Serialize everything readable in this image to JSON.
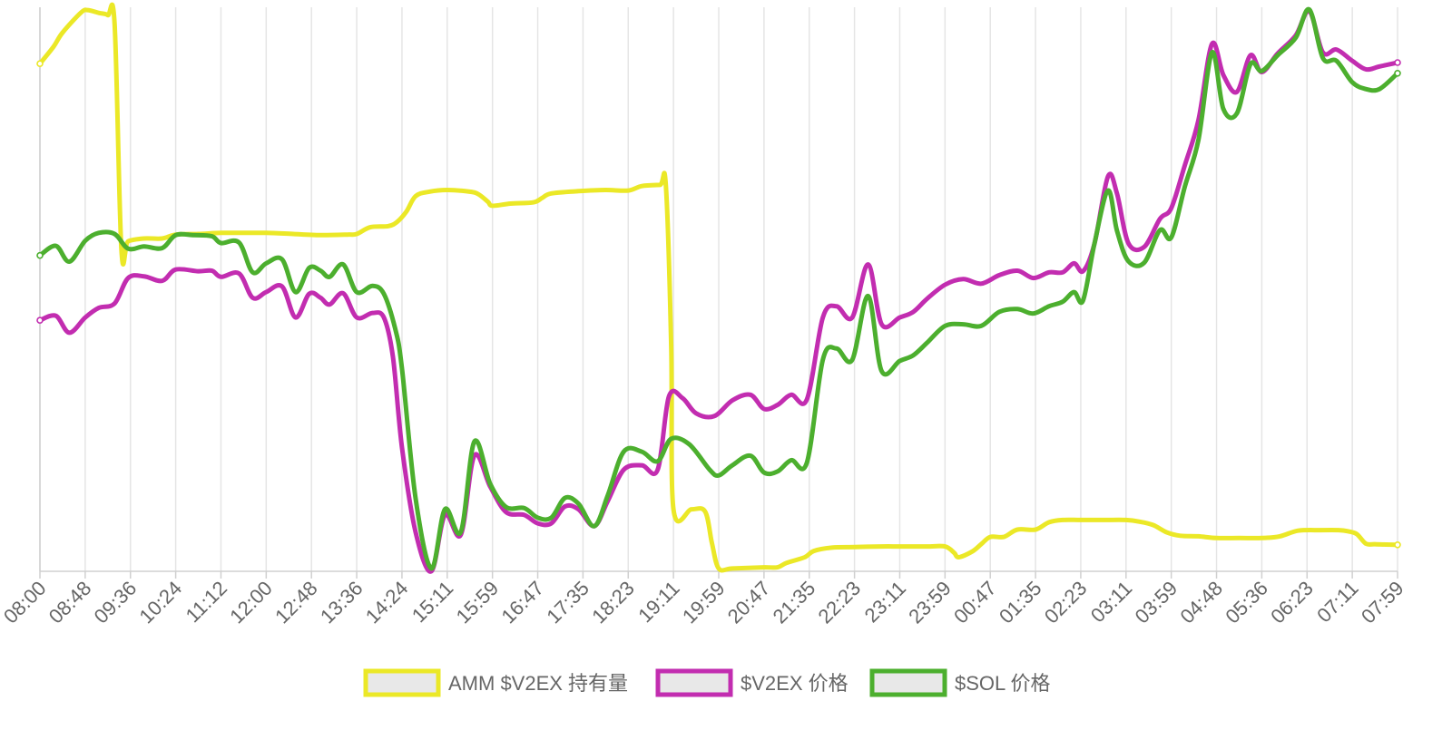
{
  "chart_data": {
    "type": "line",
    "title": "",
    "xlabel": "",
    "ylabel": "",
    "grid": "vertical",
    "legend_position": "bottom",
    "x_ticks": [
      "08:00",
      "08:48",
      "09:36",
      "10:24",
      "11:12",
      "12:00",
      "12:48",
      "13:36",
      "14:24",
      "15:11",
      "15:59",
      "16:47",
      "17:35",
      "18:23",
      "19:11",
      "19:59",
      "20:47",
      "21:35",
      "22:23",
      "23:11",
      "23:59",
      "00:47",
      "01:35",
      "02:23",
      "03:11",
      "03:59",
      "04:48",
      "05:36",
      "06:23",
      "07:11",
      "07:59"
    ],
    "x_range": [
      0,
      30
    ],
    "y_range": [
      0,
      100
    ],
    "series": [
      {
        "name": "AMM $V2EX 持有量",
        "color": "#ebe827",
        "points": [
          [
            0,
            90
          ],
          [
            0.3,
            93
          ],
          [
            0.5,
            95.5
          ],
          [
            0.9,
            99
          ],
          [
            1.05,
            99.5
          ],
          [
            1.3,
            99
          ],
          [
            1.5,
            98.6
          ],
          [
            1.65,
            97
          ],
          [
            1.8,
            57
          ],
          [
            1.95,
            58.5
          ],
          [
            2.3,
            59
          ],
          [
            2.7,
            59
          ],
          [
            3.0,
            59.7
          ],
          [
            3.5,
            59.8
          ],
          [
            4.0,
            60
          ],
          [
            4.5,
            60
          ],
          [
            5.0,
            60
          ],
          [
            5.6,
            59.8
          ],
          [
            6.2,
            59.6
          ],
          [
            6.8,
            59.7
          ],
          [
            7.0,
            59.8
          ],
          [
            7.3,
            61
          ],
          [
            7.7,
            61.2
          ],
          [
            7.9,
            62
          ],
          [
            8.1,
            63.8
          ],
          [
            8.3,
            66.5
          ],
          [
            8.6,
            67.3
          ],
          [
            9.0,
            67.6
          ],
          [
            9.5,
            67.3
          ],
          [
            9.7,
            66.8
          ],
          [
            9.9,
            65.5
          ],
          [
            10.0,
            64.8
          ],
          [
            10.4,
            65.2
          ],
          [
            10.9,
            65.4
          ],
          [
            11.1,
            66.2
          ],
          [
            11.3,
            67
          ],
          [
            11.9,
            67.4
          ],
          [
            12.5,
            67.6
          ],
          [
            13.0,
            67.5
          ],
          [
            13.3,
            68.3
          ],
          [
            13.7,
            68.5
          ],
          [
            13.83,
            68.5
          ],
          [
            13.95,
            40
          ],
          [
            14.0,
            11
          ],
          [
            14.4,
            11
          ],
          [
            14.7,
            10.6
          ],
          [
            14.85,
            5
          ],
          [
            15.0,
            0.5
          ],
          [
            15.3,
            0.5
          ],
          [
            16.0,
            0.7
          ],
          [
            16.3,
            0.7
          ],
          [
            16.5,
            1.5
          ],
          [
            16.9,
            2.5
          ],
          [
            17.1,
            3.6
          ],
          [
            17.5,
            4.2
          ],
          [
            18.0,
            4.3
          ],
          [
            18.6,
            4.4
          ],
          [
            19.0,
            4.4
          ],
          [
            19.6,
            4.4
          ],
          [
            20.0,
            4.4
          ],
          [
            20.2,
            3.3
          ],
          [
            20.3,
            2.5
          ],
          [
            20.6,
            3.5
          ],
          [
            20.8,
            4.8
          ],
          [
            21.0,
            6.1
          ],
          [
            21.3,
            6.1
          ],
          [
            21.6,
            7.4
          ],
          [
            22.0,
            7.4
          ],
          [
            22.3,
            8.7
          ],
          [
            22.6,
            9.1
          ],
          [
            23.0,
            9.1
          ],
          [
            23.5,
            9.1
          ],
          [
            24.0,
            9.1
          ],
          [
            24.3,
            8.8
          ],
          [
            24.6,
            8.2
          ],
          [
            24.9,
            6.9
          ],
          [
            25.2,
            6.3
          ],
          [
            25.6,
            6.2
          ],
          [
            26.0,
            5.9
          ],
          [
            26.5,
            5.9
          ],
          [
            27.0,
            5.9
          ],
          [
            27.4,
            6.2
          ],
          [
            27.8,
            7.2
          ],
          [
            28.3,
            7.3
          ],
          [
            28.7,
            7.3
          ],
          [
            28.9,
            7.1
          ],
          [
            29.1,
            6.6
          ],
          [
            29.3,
            4.9
          ],
          [
            29.5,
            4.8
          ],
          [
            30,
            4.7
          ]
        ]
      },
      {
        "name": "$V2EX 价格",
        "color": "#c22db0",
        "points": [
          [
            0,
            44.5
          ],
          [
            0.35,
            45.3
          ],
          [
            0.65,
            42.3
          ],
          [
            1.0,
            45
          ],
          [
            1.3,
            46.7
          ],
          [
            1.65,
            47.5
          ],
          [
            1.95,
            52
          ],
          [
            2.3,
            52.3
          ],
          [
            2.7,
            51.5
          ],
          [
            3.0,
            53.5
          ],
          [
            3.5,
            53.2
          ],
          [
            3.8,
            53.3
          ],
          [
            4.0,
            52.2
          ],
          [
            4.4,
            52.8
          ],
          [
            4.7,
            48.5
          ],
          [
            5.0,
            49.5
          ],
          [
            5.35,
            50.5
          ],
          [
            5.65,
            45
          ],
          [
            5.95,
            49.2
          ],
          [
            6.2,
            48.5
          ],
          [
            6.4,
            47.3
          ],
          [
            6.7,
            49.3
          ],
          [
            7.0,
            45
          ],
          [
            7.35,
            45.8
          ],
          [
            7.6,
            45
          ],
          [
            7.8,
            38
          ],
          [
            8.0,
            22
          ],
          [
            8.3,
            7
          ],
          [
            8.65,
            0
          ],
          [
            8.95,
            10
          ],
          [
            9.3,
            6.5
          ],
          [
            9.6,
            20.5
          ],
          [
            9.95,
            15
          ],
          [
            10.3,
            10.5
          ],
          [
            10.7,
            10
          ],
          [
            11.0,
            8.5
          ],
          [
            11.3,
            8.5
          ],
          [
            11.6,
            11.5
          ],
          [
            11.9,
            11
          ],
          [
            12.25,
            8
          ],
          [
            12.55,
            12.5
          ],
          [
            12.9,
            18
          ],
          [
            13.3,
            18.8
          ],
          [
            13.65,
            18
          ],
          [
            13.9,
            31
          ],
          [
            14.2,
            30.7
          ],
          [
            14.5,
            28
          ],
          [
            14.9,
            27.5
          ],
          [
            15.3,
            30.3
          ],
          [
            15.7,
            31.3
          ],
          [
            16.0,
            28.8
          ],
          [
            16.3,
            29.5
          ],
          [
            16.6,
            31.3
          ],
          [
            16.95,
            30.5
          ],
          [
            17.3,
            45
          ],
          [
            17.6,
            47
          ],
          [
            17.95,
            45
          ],
          [
            18.3,
            54.4
          ],
          [
            18.6,
            43.8
          ],
          [
            19.0,
            45
          ],
          [
            19.3,
            46
          ],
          [
            19.6,
            48.3
          ],
          [
            20.0,
            50.8
          ],
          [
            20.4,
            51.8
          ],
          [
            20.8,
            51
          ],
          [
            21.2,
            52.5
          ],
          [
            21.6,
            53.3
          ],
          [
            21.95,
            52
          ],
          [
            22.3,
            53
          ],
          [
            22.6,
            53
          ],
          [
            22.85,
            54.6
          ],
          [
            23.05,
            53.2
          ],
          [
            23.3,
            58
          ],
          [
            23.6,
            70
          ],
          [
            23.8,
            67
          ],
          [
            24.05,
            58.2
          ],
          [
            24.4,
            57.5
          ],
          [
            24.75,
            62.5
          ],
          [
            25.0,
            64.4
          ],
          [
            25.3,
            72
          ],
          [
            25.6,
            80
          ],
          [
            25.9,
            93.5
          ],
          [
            26.15,
            88
          ],
          [
            26.45,
            85
          ],
          [
            26.75,
            91.5
          ],
          [
            27.0,
            88.5
          ],
          [
            27.35,
            91.8
          ],
          [
            27.75,
            95
          ],
          [
            28.05,
            99.3
          ],
          [
            28.35,
            92
          ],
          [
            28.65,
            92.5
          ],
          [
            29.0,
            90.5
          ],
          [
            29.3,
            89
          ],
          [
            29.6,
            89.5
          ],
          [
            30,
            90.2
          ]
        ]
      },
      {
        "name": "$SOL 价格",
        "color": "#4caf2e",
        "points": [
          [
            0,
            56
          ],
          [
            0.35,
            57.7
          ],
          [
            0.65,
            54.9
          ],
          [
            1.0,
            58.6
          ],
          [
            1.3,
            60
          ],
          [
            1.65,
            59.8
          ],
          [
            1.95,
            57.2
          ],
          [
            2.3,
            57.6
          ],
          [
            2.7,
            57.3
          ],
          [
            3.0,
            59.6
          ],
          [
            3.4,
            59.6
          ],
          [
            3.8,
            59.4
          ],
          [
            4.0,
            58.2
          ],
          [
            4.4,
            58.3
          ],
          [
            4.7,
            53
          ],
          [
            5.0,
            54.6
          ],
          [
            5.35,
            55.3
          ],
          [
            5.65,
            49.5
          ],
          [
            5.95,
            53.8
          ],
          [
            6.2,
            53.3
          ],
          [
            6.4,
            52.2
          ],
          [
            6.7,
            54.4
          ],
          [
            7.0,
            49.5
          ],
          [
            7.35,
            50.6
          ],
          [
            7.6,
            49.2
          ],
          [
            7.85,
            43
          ],
          [
            8.0,
            36
          ],
          [
            8.3,
            13
          ],
          [
            8.65,
            0.5
          ],
          [
            8.95,
            11
          ],
          [
            9.3,
            7
          ],
          [
            9.6,
            23
          ],
          [
            9.95,
            15.5
          ],
          [
            10.3,
            11.4
          ],
          [
            10.7,
            11.2
          ],
          [
            11.0,
            9.5
          ],
          [
            11.3,
            9.5
          ],
          [
            11.6,
            13
          ],
          [
            11.9,
            12
          ],
          [
            12.25,
            8
          ],
          [
            12.55,
            13.5
          ],
          [
            12.9,
            21.2
          ],
          [
            13.3,
            21.2
          ],
          [
            13.65,
            19.5
          ],
          [
            13.95,
            23.5
          ],
          [
            14.35,
            22.5
          ],
          [
            14.8,
            18
          ],
          [
            15.0,
            17
          ],
          [
            15.3,
            18.8
          ],
          [
            15.7,
            20.5
          ],
          [
            16.0,
            17.5
          ],
          [
            16.3,
            17.7
          ],
          [
            16.6,
            19.7
          ],
          [
            16.95,
            19.3
          ],
          [
            17.3,
            37.5
          ],
          [
            17.6,
            39.5
          ],
          [
            17.95,
            37.5
          ],
          [
            18.3,
            48.8
          ],
          [
            18.6,
            35.5
          ],
          [
            19.0,
            37.3
          ],
          [
            19.3,
            38.3
          ],
          [
            19.6,
            40.5
          ],
          [
            20.0,
            43.5
          ],
          [
            20.4,
            43.8
          ],
          [
            20.8,
            43.5
          ],
          [
            21.2,
            46
          ],
          [
            21.6,
            46.5
          ],
          [
            21.95,
            45.7
          ],
          [
            22.3,
            47
          ],
          [
            22.6,
            47.8
          ],
          [
            22.85,
            49.5
          ],
          [
            23.05,
            48
          ],
          [
            23.3,
            58
          ],
          [
            23.6,
            67.5
          ],
          [
            23.8,
            60.4
          ],
          [
            24.05,
            55
          ],
          [
            24.4,
            54.7
          ],
          [
            24.75,
            60.5
          ],
          [
            25.0,
            59.2
          ],
          [
            25.3,
            68.2
          ],
          [
            25.6,
            76.5
          ],
          [
            25.9,
            92
          ],
          [
            26.15,
            82
          ],
          [
            26.45,
            81.2
          ],
          [
            26.75,
            89.9
          ],
          [
            27.0,
            88.7
          ],
          [
            27.35,
            91.5
          ],
          [
            27.75,
            94.6
          ],
          [
            28.05,
            99.6
          ],
          [
            28.35,
            91
          ],
          [
            28.65,
            90.5
          ],
          [
            29.0,
            86.7
          ],
          [
            29.3,
            85.5
          ],
          [
            29.6,
            85.5
          ],
          [
            30,
            88.3
          ]
        ]
      }
    ]
  }
}
